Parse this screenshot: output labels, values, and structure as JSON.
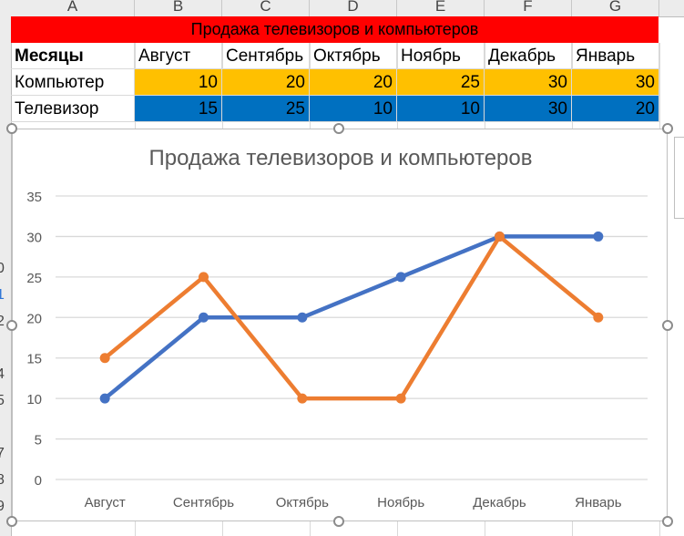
{
  "columns": [
    "A",
    "B",
    "C",
    "D",
    "E",
    "F",
    "G"
  ],
  "row_numbers": [
    "0",
    "1",
    "2",
    "4",
    "5",
    "7",
    "8",
    "9"
  ],
  "table": {
    "title": "Продажа телевизоров и компьютеров",
    "header_label": "Месяцы",
    "months": [
      "Август",
      "Сентябрь",
      "Октябрь",
      "Ноябрь",
      "Декабрь",
      "Январь"
    ],
    "rows": [
      {
        "label": "Компьютер",
        "values": [
          "10",
          "20",
          "20",
          "25",
          "30",
          "30"
        ],
        "color": "#ffc000"
      },
      {
        "label": "Телевизор",
        "values": [
          "15",
          "25",
          "10",
          "10",
          "30",
          "20"
        ],
        "color": "#0070c0"
      }
    ]
  },
  "chart_data": {
    "type": "line",
    "title": "Продажа телевизоров и компьютеров",
    "categories": [
      "Август",
      "Сентябрь",
      "Октябрь",
      "Ноябрь",
      "Декабрь",
      "Январь"
    ],
    "series": [
      {
        "values": [
          10,
          20,
          20,
          25,
          30,
          30
        ],
        "color": "#4472c4"
      },
      {
        "values": [
          15,
          25,
          10,
          10,
          30,
          20
        ],
        "color": "#ed7d31"
      }
    ],
    "ylim": [
      0,
      35
    ],
    "yticks": [
      "0",
      "5",
      "10",
      "15",
      "20",
      "25",
      "30",
      "35"
    ],
    "grid": true,
    "legend": "none"
  }
}
